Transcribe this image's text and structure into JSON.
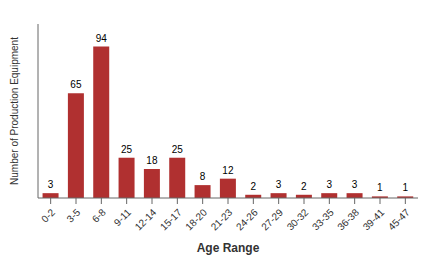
{
  "chart_data": {
    "type": "bar",
    "categories": [
      "0-2",
      "3-5",
      "6-8",
      "9-11",
      "12-14",
      "15-17",
      "18-20",
      "21-23",
      "24-26",
      "27-29",
      "30-32",
      "33-35",
      "36-38",
      "39-41",
      "45-47"
    ],
    "values": [
      3,
      65,
      94,
      25,
      18,
      25,
      8,
      12,
      2,
      3,
      2,
      3,
      3,
      1,
      1
    ],
    "color": "#b03030",
    "xlabel": "Age Range",
    "ylabel": "Number of Production Equipment",
    "ylim": [
      0,
      108
    ],
    "data_labels": true,
    "tick_labels": "x",
    "grid": false
  }
}
